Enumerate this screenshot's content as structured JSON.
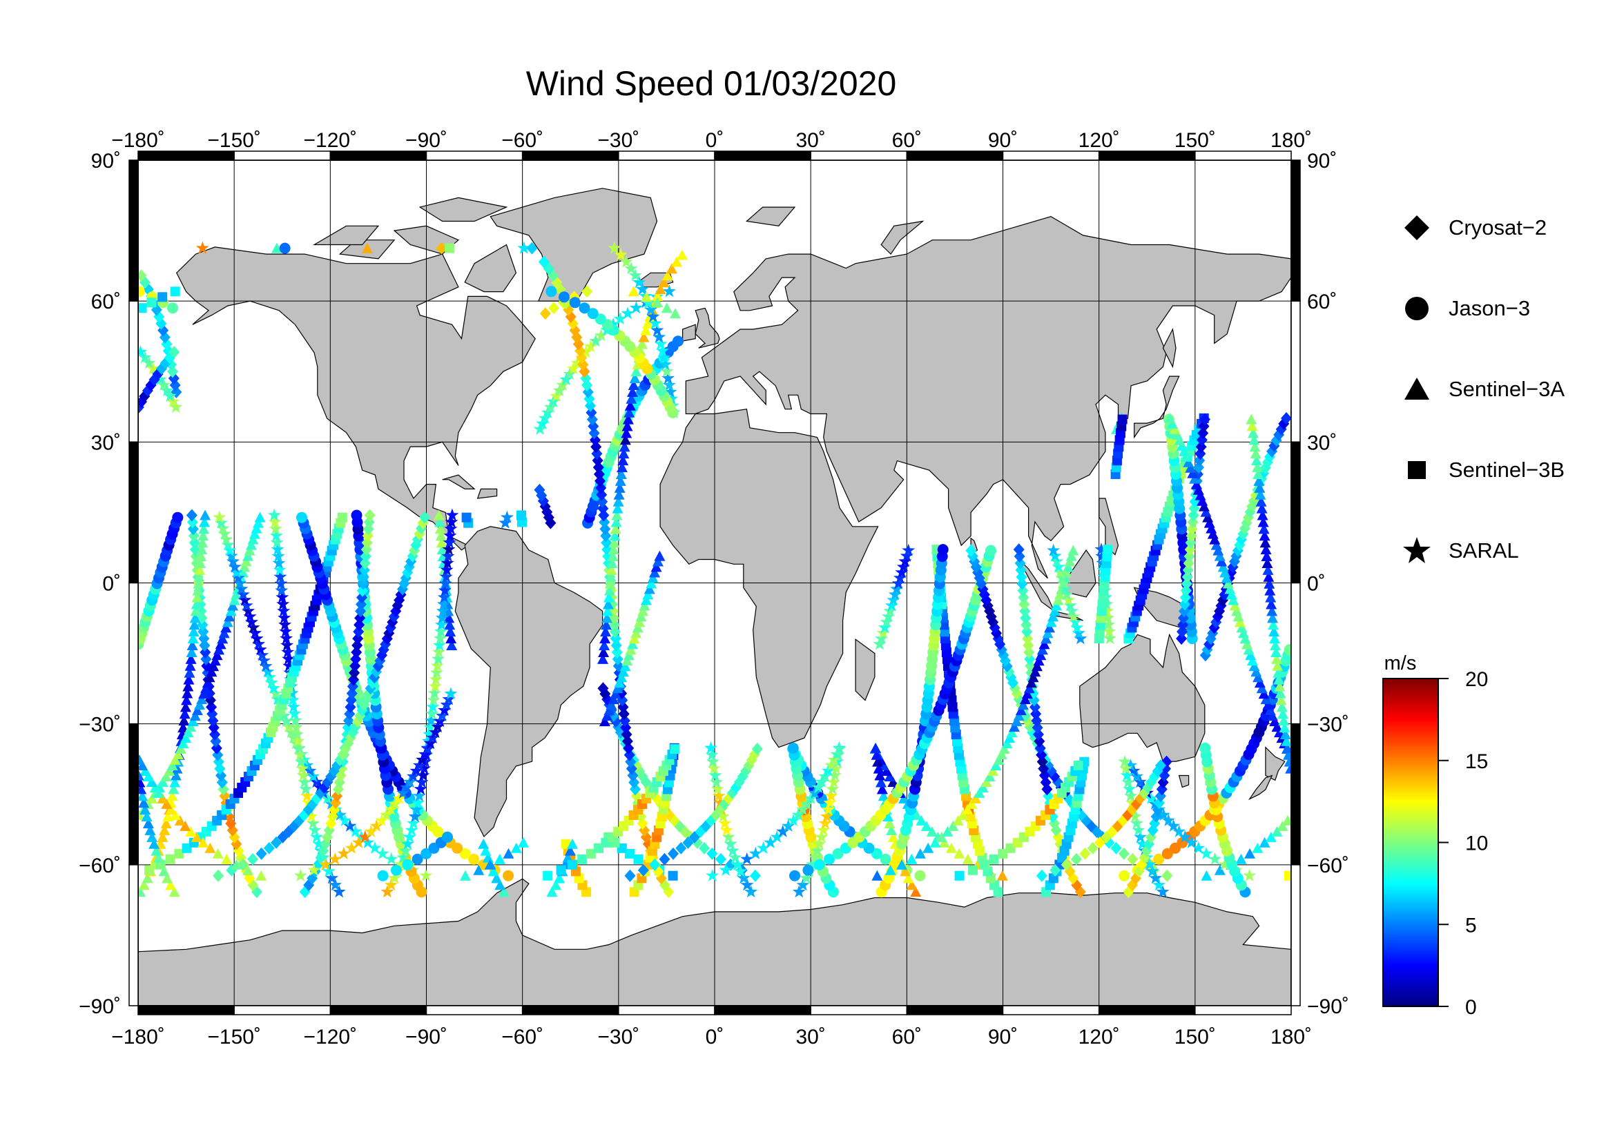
{
  "title": "Wind Speed 01/03/2020",
  "map": {
    "lon_ticks": [
      "−180˚",
      "−150˚",
      "−120˚",
      "−90˚",
      "−60˚",
      "−30˚",
      "0˚",
      "30˚",
      "60˚",
      "90˚",
      "120˚",
      "150˚",
      "180˚"
    ],
    "lat_ticks": [
      "90˚",
      "60˚",
      "30˚",
      "0˚",
      "−30˚",
      "−60˚",
      "−90˚"
    ],
    "land_color": "#c0c0c0",
    "ocean_color": "#ffffff"
  },
  "legend": {
    "items": [
      {
        "label": "Cryosat−2",
        "marker": "diamond"
      },
      {
        "label": "Jason−3",
        "marker": "circle"
      },
      {
        "label": "Sentinel−3A",
        "marker": "triangle"
      },
      {
        "label": "Sentinel−3B",
        "marker": "square"
      },
      {
        "label": "SARAL",
        "marker": "star"
      }
    ]
  },
  "colorbar": {
    "unit": "m/s",
    "min": 0,
    "max": 20,
    "ticks": [
      "0",
      "5",
      "10",
      "15",
      "20"
    ],
    "colors": [
      "#00007f",
      "#0000ff",
      "#007fff",
      "#00ffff",
      "#7fff7f",
      "#ffff00",
      "#ff7f00",
      "#ff0000",
      "#7f0000"
    ]
  }
}
